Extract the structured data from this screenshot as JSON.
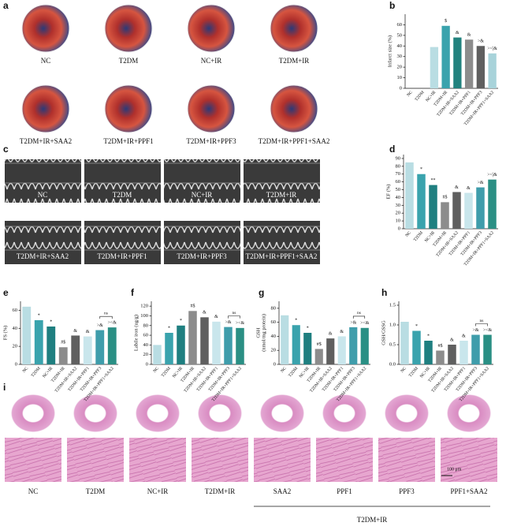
{
  "photo_panels": [
    {
      "panel": "a",
      "labels": [
        "NC",
        "T2DM",
        "NC+IR",
        "T2DM+IR",
        "T2DM+IR+SAA2",
        "T2DM+IR+PPF1",
        "T2DM+IR+PPF3",
        "T2DM+IR+PPF1+SAA2"
      ]
    },
    {
      "panel": "c",
      "labels": [
        "NC",
        "T2DM",
        "NC+IR",
        "T2DM+IR",
        "T2DM+IR+SAA2",
        "T2DM+IR+PPF1",
        "T2DM+IR+PPF3",
        "T2DM+IR+PPF1+SAA2"
      ]
    },
    {
      "panel": "i",
      "labels": [
        "NC",
        "T2DM",
        "NC+IR",
        "T2DM+IR",
        "SAA2",
        "PPF1",
        "PPF3",
        "PPF1+SAA2"
      ],
      "group_label": "T2DM+IR",
      "scale_bar": "100 μm"
    }
  ],
  "chart_data": [
    {
      "type": "bar",
      "panel": "b",
      "ylabel": "Infarct size (%)",
      "categories": [
        "NC",
        "T2DM",
        "NC+IR",
        "T2DM+IR",
        "T2DM+IR+SAA2",
        "T2DM+IR+PPF1",
        "T2DM+IR+PPF3",
        "T2DM+IR+PPF1+SAA2"
      ],
      "values": [
        0,
        0,
        39,
        59,
        48,
        46,
        40,
        33
      ],
      "colors": [
        "#b9dde3",
        "#b9dde3",
        "#b9dde3",
        "#3aa3ad",
        "#22827e",
        "#8c8c8c",
        "#5f5f5f",
        "#a8d3da"
      ],
      "annotations": [
        null,
        null,
        null,
        "$",
        "&",
        "&",
        ">&",
        "><|&"
      ],
      "ylim": [
        0,
        70
      ],
      "yticks": [
        0,
        10,
        20,
        30,
        40,
        50,
        60
      ]
    },
    {
      "type": "bar",
      "panel": "d",
      "ylabel": "EF (%)",
      "categories": [
        "NC",
        "T2DM",
        "NC+IR",
        "T2DM+IR",
        "T2DM+IR+SAA2",
        "T2DM+IR+PPF1",
        "T2DM+IR+PPF3",
        "T2DM+IR+PPF1+SAA2"
      ],
      "values": [
        85,
        70,
        56,
        34,
        47,
        46,
        53,
        63
      ],
      "colors": [
        "#b9dde3",
        "#3aa3ad",
        "#1f7f80",
        "#8c8c8c",
        "#5f5f5f",
        "#c9e6ec",
        "#3f9dab",
        "#2a8f84"
      ],
      "annotations": [
        null,
        "*",
        "**",
        "#$",
        "&",
        "&",
        ">&",
        "><|&"
      ],
      "ylim": [
        0,
        95
      ],
      "yticks": [
        0,
        10,
        20,
        30,
        40,
        50,
        60,
        70,
        80,
        90
      ]
    },
    {
      "type": "bar",
      "panel": "e",
      "ylabel": "FS (%)",
      "categories": [
        "NC",
        "T2DM",
        "NC+IR",
        "T2DM+IR",
        "T2DM+IR+SAA2",
        "T2DM+IR+PPF1",
        "T2DM+IR+PPF3",
        "T2DM+IR+PPF1+SAA2"
      ],
      "values": [
        64,
        49,
        42,
        19,
        32,
        31,
        38,
        41
      ],
      "colors": [
        "#b9dde3",
        "#3aa3ad",
        "#1f7f80",
        "#8c8c8c",
        "#5f5f5f",
        "#c9e6ec",
        "#3f9dab",
        "#2a8f84"
      ],
      "annotations": [
        null,
        "*",
        "*",
        "#$",
        "&",
        "&",
        ">&",
        "><&"
      ],
      "bracket_label": "ns",
      "ylim": [
        0,
        70
      ],
      "yticks": [
        0,
        20,
        40,
        60
      ]
    },
    {
      "type": "bar",
      "panel": "f",
      "ylabel": "Labile iron (ug/g)",
      "categories": [
        "NC",
        "T2DM",
        "NC+IR",
        "T2DM+IR",
        "T2DM+IR+SAA2",
        "T2DM+IR+PPF1",
        "T2DM+IR+PPF3",
        "T2DM+IR+PPF1+SAA2"
      ],
      "values": [
        40,
        65,
        80,
        110,
        97,
        88,
        77,
        75
      ],
      "colors": [
        "#b9dde3",
        "#3aa3ad",
        "#1f7f80",
        "#8c8c8c",
        "#5f5f5f",
        "#c9e6ec",
        "#3f9dab",
        "#2a8f84"
      ],
      "annotations": [
        null,
        "*",
        "*",
        "#$",
        "&",
        "&",
        ">&",
        "><&"
      ],
      "bracket_label": "ns",
      "ylim": [
        0,
        130
      ],
      "yticks": [
        0,
        20,
        40,
        60,
        80,
        100,
        120
      ]
    },
    {
      "type": "bar",
      "panel": "g",
      "ylabel": [
        "GSH",
        "(nmol/mg protein)"
      ],
      "categories": [
        "NC",
        "T2DM",
        "NC+IR",
        "T2DM+IR",
        "T2DM+IR+SAA2",
        "T2DM+IR+PPF1",
        "T2DM+IR+PPF3",
        "T2DM+IR+PPF1+SAA2"
      ],
      "values": [
        70,
        56,
        45,
        22,
        37,
        40,
        53,
        52
      ],
      "colors": [
        "#b9dde3",
        "#3aa3ad",
        "#1f7f80",
        "#8c8c8c",
        "#5f5f5f",
        "#c9e6ec",
        "#3f9dab",
        "#2a8f84"
      ],
      "annotations": [
        null,
        "*",
        "*",
        "#$",
        "&",
        "&",
        ">&",
        "><&"
      ],
      "bracket_label": "ns",
      "ylim": [
        0,
        90
      ],
      "yticks": [
        0,
        20,
        40,
        60,
        80
      ]
    },
    {
      "type": "bar",
      "panel": "h",
      "ylabel": "GSH/GSSG",
      "categories": [
        "NC",
        "T2DM",
        "NC+IR",
        "T2DM+IR",
        "T2DM+IR+SAA2",
        "T2DM+IR+PPF1",
        "T2DM+IR+PPF3",
        "T2DM+IR+PPF1+SAA2"
      ],
      "values": [
        1.08,
        0.85,
        0.6,
        0.35,
        0.5,
        0.6,
        0.75,
        0.75
      ],
      "colors": [
        "#b9dde3",
        "#3aa3ad",
        "#1f7f80",
        "#8c8c8c",
        "#5f5f5f",
        "#c9e6ec",
        "#3f9dab",
        "#2a8f84"
      ],
      "annotations": [
        null,
        "*",
        "*",
        "#$",
        "&",
        "&",
        ">&",
        "><&"
      ],
      "bracket_label": "ns",
      "ylim": [
        0,
        1.6
      ],
      "yticks": [
        {
          "value": 0,
          "label": "0.0"
        },
        {
          "value": 0.5,
          "label": "0.5"
        },
        {
          "value": 1,
          "label": "1.0"
        },
        {
          "value": 1.5,
          "label": "1.5"
        }
      ]
    }
  ]
}
